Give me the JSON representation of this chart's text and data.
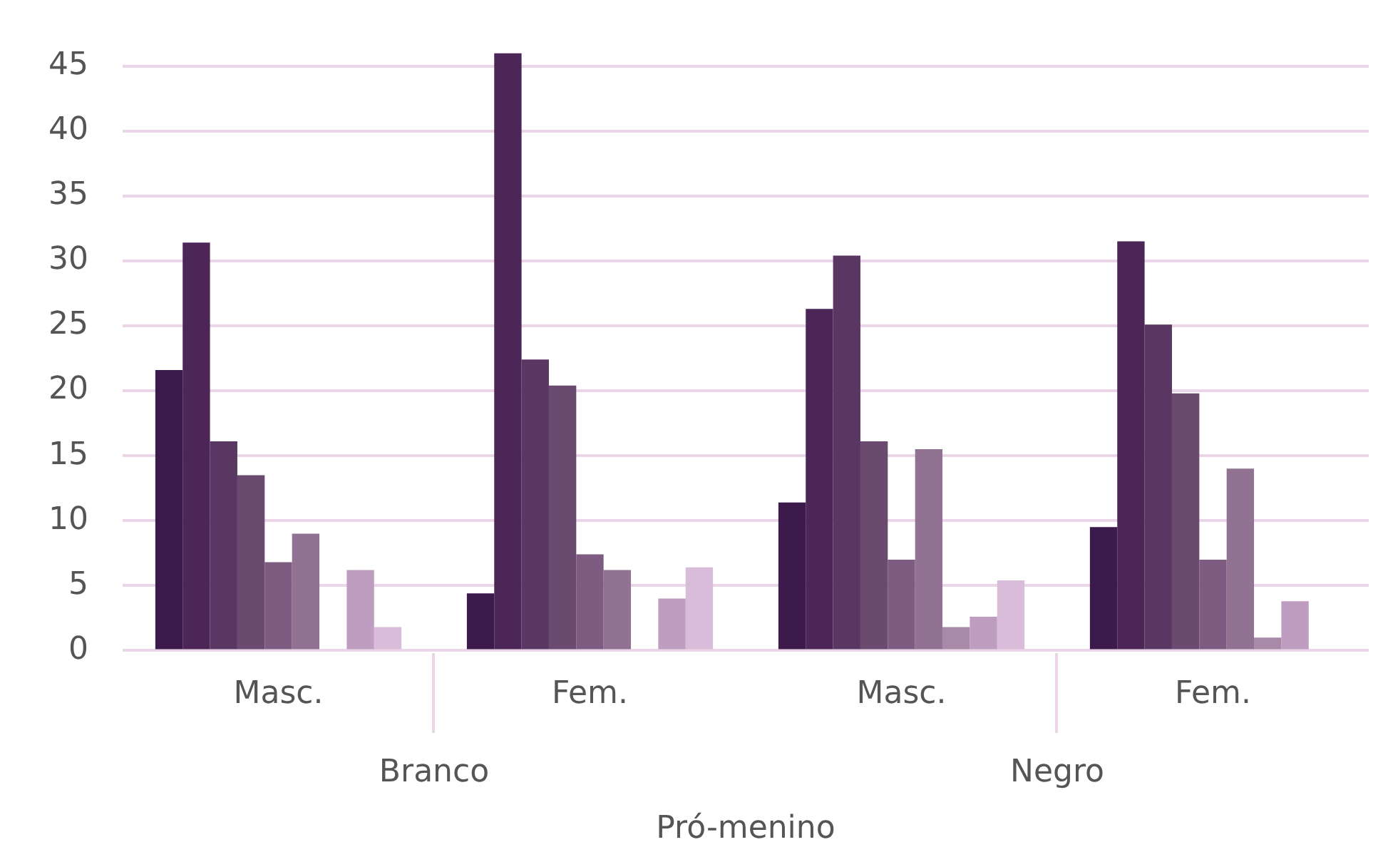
{
  "chart_data": {
    "type": "bar",
    "xlabel": "Pró-menino",
    "categories": [
      "Masc.",
      "Fem.",
      "Masc.",
      "Fem."
    ],
    "annotations": [
      "Branco",
      "Negro"
    ],
    "series": [
      {
        "color": "#3d1a4c",
        "values": [
          21.6,
          4.4,
          11.4,
          9.5
        ]
      },
      {
        "color": "#4b2657",
        "values": [
          31.4,
          46.0,
          26.3,
          31.5
        ]
      },
      {
        "color": "#5a3762",
        "values": [
          16.1,
          22.4,
          30.4,
          25.1
        ]
      },
      {
        "color": "#6b4a70",
        "values": [
          13.5,
          20.4,
          16.1,
          19.8
        ]
      },
      {
        "color": "#7e5c82",
        "values": [
          6.8,
          7.4,
          7.0,
          7.0
        ]
      },
      {
        "color": "#927293",
        "values": [
          9.0,
          6.2,
          15.5,
          14.0
        ]
      },
      {
        "color": "#a88aa8",
        "values": [
          0,
          0,
          1.8,
          1.0
        ]
      },
      {
        "color": "#bf9dc0",
        "values": [
          6.2,
          4.0,
          2.6,
          3.8
        ]
      },
      {
        "color": "#d9bcda",
        "values": [
          1.8,
          6.4,
          5.4,
          0
        ]
      }
    ],
    "ylim": [
      0,
      46
    ],
    "yticks": [
      0,
      5,
      10,
      15,
      20,
      25,
      30,
      35,
      40,
      45
    ],
    "grid": "y",
    "legend": false
  }
}
